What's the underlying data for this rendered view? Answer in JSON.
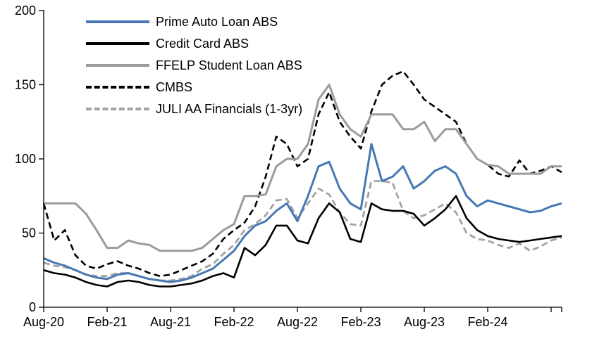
{
  "chart_data": {
    "type": "line",
    "title": "",
    "xlabel": "",
    "ylabel": "",
    "ylim": [
      0,
      200
    ],
    "y_ticks": [
      0,
      50,
      100,
      150,
      200
    ],
    "grid": false,
    "legend_position": "top-left",
    "n_points": 50,
    "x_tick_step": 6,
    "x_tick_labels": [
      "Aug-20",
      "Feb-21",
      "Aug-21",
      "Feb-22",
      "Aug-22",
      "Feb-23",
      "Aug-23",
      "Feb-24"
    ],
    "x_tick_indices": [
      0,
      6,
      12,
      18,
      24,
      30,
      36,
      42
    ],
    "axis_color": "#000000",
    "series": [
      {
        "name": "Prime Auto Loan ABS",
        "color": "#4778B3",
        "dash": "solid",
        "width": 3,
        "values": [
          33,
          30,
          28,
          25,
          22,
          20,
          19,
          22,
          23,
          21,
          19,
          18,
          17,
          18,
          20,
          23,
          26,
          32,
          38,
          48,
          55,
          58,
          65,
          70,
          58,
          75,
          95,
          98,
          80,
          70,
          66,
          110,
          85,
          88,
          95,
          80,
          85,
          92,
          95,
          90,
          75,
          68,
          72,
          70,
          68,
          66,
          64,
          65,
          68,
          70
        ]
      },
      {
        "name": "Credit Card ABS",
        "color": "#000000",
        "dash": "solid",
        "width": 2.6,
        "values": [
          25,
          23,
          22,
          20,
          17,
          15,
          14,
          17,
          18,
          17,
          15,
          14,
          14,
          15,
          16,
          18,
          21,
          23,
          20,
          40,
          35,
          42,
          55,
          55,
          45,
          43,
          60,
          70,
          64,
          46,
          44,
          70,
          66,
          65,
          65,
          63,
          55,
          60,
          66,
          75,
          60,
          52,
          48,
          46,
          45,
          44,
          45,
          46,
          47,
          48
        ]
      },
      {
        "name": "FFELP Student Loan ABS",
        "color": "#9B9B9B",
        "dash": "solid",
        "width": 3,
        "values": [
          70,
          70,
          70,
          70,
          63,
          52,
          40,
          40,
          45,
          43,
          42,
          38,
          38,
          38,
          38,
          40,
          46,
          52,
          56,
          75,
          75,
          76,
          95,
          100,
          100,
          110,
          140,
          150,
          130,
          120,
          115,
          130,
          130,
          130,
          120,
          120,
          125,
          112,
          120,
          120,
          110,
          100,
          96,
          95,
          90,
          90,
          90,
          90,
          95,
          95
        ]
      },
      {
        "name": "CMBS",
        "color": "#000000",
        "dash": "dashed",
        "width": 2.6,
        "values": [
          70,
          45,
          52,
          35,
          28,
          26,
          29,
          31,
          28,
          26,
          23,
          21,
          22,
          25,
          28,
          31,
          36,
          46,
          52,
          57,
          68,
          88,
          115,
          110,
          95,
          100,
          130,
          145,
          125,
          115,
          107,
          132,
          150,
          156,
          159,
          150,
          140,
          135,
          130,
          125,
          110,
          100,
          96,
          90,
          88,
          99,
          90,
          92,
          95,
          91
        ]
      },
      {
        "name": "JULI AA Financials (1-3yr)",
        "color": "#A3A3A3",
        "dash": "dashed",
        "width": 2.8,
        "values": [
          30,
          28,
          27,
          25,
          22,
          21,
          21,
          23,
          23,
          21,
          19,
          18,
          18,
          19,
          21,
          26,
          29,
          36,
          42,
          52,
          56,
          62,
          72,
          73,
          60,
          70,
          80,
          76,
          64,
          56,
          55,
          85,
          85,
          84,
          65,
          60,
          62,
          66,
          70,
          64,
          50,
          46,
          45,
          42,
          40,
          43,
          38,
          41,
          45,
          47
        ]
      }
    ]
  }
}
